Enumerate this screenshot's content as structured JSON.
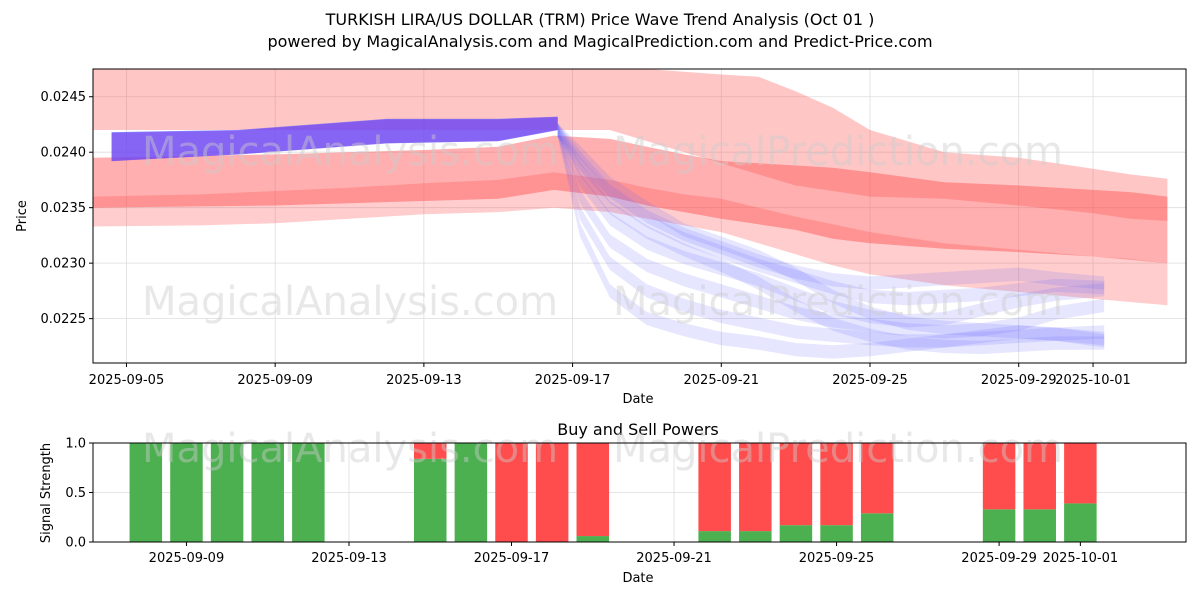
{
  "chart_data": [
    {
      "type": "area",
      "title": "TURKISH LIRA/US DOLLAR (TRM) Price Wave Trend Analysis (Oct 01 )",
      "subtitle": "powered by MagicalAnalysis.com and MagicalPrediction.com and Predict-Price.com",
      "xlabel": "Date",
      "ylabel": "Price",
      "x_range_days": [
        -0.9,
        28.5
      ],
      "ylim": [
        0.0221,
        0.02475
      ],
      "x_ticks": [
        {
          "day": 0,
          "label": "2025-09-05"
        },
        {
          "day": 4,
          "label": "2025-09-09"
        },
        {
          "day": 8,
          "label": "2025-09-13"
        },
        {
          "day": 12,
          "label": "2025-09-17"
        },
        {
          "day": 16,
          "label": "2025-09-21"
        },
        {
          "day": 20,
          "label": "2025-09-25"
        },
        {
          "day": 24,
          "label": "2025-09-29"
        },
        {
          "day": 26,
          "label": "2025-10-01"
        }
      ],
      "y_ticks": [
        {
          "value": 0.0225,
          "label": "0.0225"
        },
        {
          "value": 0.023,
          "label": "0.0230"
        },
        {
          "value": 0.0235,
          "label": "0.0235"
        },
        {
          "value": 0.024,
          "label": "0.0240"
        },
        {
          "value": 0.0245,
          "label": "0.0245"
        }
      ],
      "grid": true,
      "red_bands": [
        {
          "name": "red-band-wide-upper",
          "opacity": 0.32,
          "x": [
            -0.9,
            6,
            10,
            13,
            14,
            16,
            17,
            18,
            19,
            20,
            22,
            24,
            26,
            27,
            28
          ],
          "upper": [
            0.02475,
            0.02475,
            0.02475,
            0.02475,
            0.02475,
            0.0247,
            0.02468,
            0.02455,
            0.0244,
            0.0242,
            0.024,
            0.02395,
            0.02385,
            0.0238,
            0.02376
          ],
          "lower": [
            0.0242,
            0.0242,
            0.0242,
            0.0242,
            0.0241,
            0.0239,
            0.0238,
            0.0237,
            0.02365,
            0.0236,
            0.02358,
            0.02352,
            0.02345,
            0.0234,
            0.02338
          ]
        },
        {
          "name": "red-band-core",
          "opacity": 0.45,
          "x": [
            -0.9,
            4,
            8,
            10,
            11.5,
            13,
            14,
            15,
            16,
            17,
            18,
            19,
            20,
            22,
            24,
            26,
            27,
            28
          ],
          "upper": [
            0.02395,
            0.02398,
            0.02402,
            0.02405,
            0.02415,
            0.02412,
            0.02405,
            0.02398,
            0.02392,
            0.0239,
            0.02388,
            0.02386,
            0.02382,
            0.02373,
            0.0237,
            0.02366,
            0.02364,
            0.0236
          ],
          "lower": [
            0.0235,
            0.02352,
            0.02356,
            0.02358,
            0.02366,
            0.0236,
            0.02352,
            0.02346,
            0.0234,
            0.02335,
            0.0233,
            0.02322,
            0.02318,
            0.02313,
            0.0231,
            0.02306,
            0.02303,
            0.023
          ]
        },
        {
          "name": "red-band-low",
          "opacity": 0.28,
          "x": [
            -0.9,
            2,
            4,
            6,
            8,
            10,
            11.5,
            13,
            14,
            15,
            16,
            17,
            18,
            19,
            20,
            22,
            24,
            26,
            27,
            28
          ],
          "upper": [
            0.0236,
            0.02362,
            0.02365,
            0.02368,
            0.02372,
            0.02375,
            0.02382,
            0.02375,
            0.02368,
            0.02362,
            0.02358,
            0.0235,
            0.02342,
            0.02335,
            0.02328,
            0.02318,
            0.02312,
            0.02306,
            0.02304,
            0.023
          ],
          "lower": [
            0.02333,
            0.02334,
            0.02336,
            0.0234,
            0.02344,
            0.02346,
            0.0235,
            0.02346,
            0.0234,
            0.02334,
            0.02328,
            0.02318,
            0.02308,
            0.02298,
            0.0229,
            0.0228,
            0.02274,
            0.02268,
            0.02265,
            0.02262
          ]
        }
      ],
      "blue_band_history": {
        "x": [
          -0.4,
          3,
          7,
          10,
          11.6
        ],
        "upper": [
          0.02418,
          0.0242,
          0.0243,
          0.0243,
          0.02432
        ],
        "lower": [
          0.02392,
          0.02398,
          0.02408,
          0.0241,
          0.0242
        ]
      },
      "blue_projections": [
        {
          "x": [
            11.6,
            12.2,
            13,
            14,
            15,
            16,
            17,
            18,
            19,
            20,
            21,
            22,
            23,
            24,
            25,
            26.3
          ],
          "y": [
            0.0242,
            0.0233,
            0.02275,
            0.0225,
            0.0224,
            0.02232,
            0.02228,
            0.02222,
            0.0222,
            0.02222,
            0.02226,
            0.0223,
            0.02234,
            0.02238,
            0.02236,
            0.0223
          ]
        },
        {
          "x": [
            11.6,
            12.2,
            13,
            14,
            15,
            16,
            17,
            18,
            19,
            20,
            21,
            22,
            23,
            24,
            25,
            26.3
          ],
          "y": [
            0.0242,
            0.02345,
            0.023,
            0.02275,
            0.02262,
            0.02252,
            0.02245,
            0.02238,
            0.02235,
            0.02232,
            0.0223,
            0.0223,
            0.02232,
            0.02234,
            0.02236,
            0.02238
          ]
        },
        {
          "x": [
            11.6,
            12.2,
            13,
            14,
            15,
            16,
            17,
            18,
            19,
            20,
            21,
            22,
            23,
            24,
            25,
            26.3
          ],
          "y": [
            0.0242,
            0.0236,
            0.0232,
            0.02298,
            0.02285,
            0.02275,
            0.02265,
            0.02255,
            0.02248,
            0.02244,
            0.0224,
            0.02238,
            0.0224,
            0.02245,
            0.02255,
            0.02262
          ]
        },
        {
          "x": [
            11.6,
            12.2,
            13,
            14,
            15,
            16,
            17,
            18,
            19,
            20,
            21,
            22,
            23,
            24,
            25,
            26.3
          ],
          "y": [
            0.0242,
            0.02375,
            0.0234,
            0.02318,
            0.02305,
            0.02295,
            0.02285,
            0.02272,
            0.0226,
            0.02252,
            0.02248,
            0.0225,
            0.02258,
            0.02266,
            0.02272,
            0.02276
          ]
        },
        {
          "x": [
            11.6,
            12.2,
            13,
            14,
            15,
            16,
            17,
            18,
            19,
            20,
            21,
            22,
            23,
            24,
            25,
            26.3
          ],
          "y": [
            0.0242,
            0.0239,
            0.0236,
            0.02338,
            0.02322,
            0.0231,
            0.02298,
            0.02288,
            0.02278,
            0.0227,
            0.02268,
            0.0227,
            0.02272,
            0.02276,
            0.0228,
            0.02278
          ]
        },
        {
          "x": [
            11.6,
            12.2,
            13,
            14,
            15,
            16,
            17,
            18,
            19,
            20,
            21,
            22,
            23,
            24,
            25,
            26.3
          ],
          "y": [
            0.0242,
            0.024,
            0.02372,
            0.0235,
            0.0233,
            0.02318,
            0.02306,
            0.0229,
            0.0227,
            0.02255,
            0.02246,
            0.02242,
            0.0224,
            0.02238,
            0.02236,
            0.02232
          ]
        },
        {
          "x": [
            11.6,
            12.2,
            13,
            14,
            15,
            16,
            17,
            18,
            19,
            20,
            21,
            22,
            23,
            24,
            25,
            26.3
          ],
          "y": [
            0.0242,
            0.02385,
            0.0235,
            0.02328,
            0.02312,
            0.02298,
            0.02282,
            0.02262,
            0.02245,
            0.02235,
            0.02228,
            0.02225,
            0.02224,
            0.02226,
            0.02228,
            0.02228
          ]
        },
        {
          "x": [
            11.6,
            12.2,
            13,
            14,
            15,
            16,
            17,
            18,
            19,
            20,
            21,
            22,
            23,
            24,
            25,
            26.3
          ],
          "y": [
            0.0242,
            0.02395,
            0.02365,
            0.02342,
            0.02326,
            0.02314,
            0.02302,
            0.02292,
            0.02285,
            0.02282,
            0.02284,
            0.02286,
            0.02288,
            0.0229,
            0.02286,
            0.02282
          ]
        }
      ],
      "watermarks": [
        "MagicalAnalysis.com",
        "MagicalPrediction.com",
        "MagicalAnalysis.com",
        "MagicalPrediction.com"
      ]
    },
    {
      "type": "bar",
      "title": "Buy and Sell Powers",
      "xlabel": "Date",
      "ylabel": "Signal Strength",
      "ylim": [
        0,
        1
      ],
      "y_ticks": [
        {
          "value": 0.0,
          "label": "0.0"
        },
        {
          "value": 0.5,
          "label": "0.5"
        },
        {
          "value": 1.0,
          "label": "1.0"
        }
      ],
      "x_range_days": [
        -0.3,
        26.6
      ],
      "x_ticks": [
        {
          "day": 2,
          "label": "2025-09-09"
        },
        {
          "day": 6,
          "label": "2025-09-13"
        },
        {
          "day": 10,
          "label": "2025-09-17"
        },
        {
          "day": 14,
          "label": "2025-09-21"
        },
        {
          "day": 18,
          "label": "2025-09-25"
        },
        {
          "day": 22,
          "label": "2025-09-29"
        },
        {
          "day": 24,
          "label": "2025-10-01"
        }
      ],
      "series": [
        {
          "name": "buy",
          "color": "#4caf50"
        },
        {
          "name": "sell",
          "color": "#ff4d4d"
        }
      ],
      "bars": [
        {
          "date": "2025-09-08",
          "day": 1,
          "buy": 1.0,
          "sell": 0.0
        },
        {
          "date": "2025-09-09",
          "day": 2,
          "buy": 1.0,
          "sell": 0.0
        },
        {
          "date": "2025-09-10",
          "day": 3,
          "buy": 1.0,
          "sell": 0.0
        },
        {
          "date": "2025-09-11",
          "day": 4,
          "buy": 1.0,
          "sell": 0.0
        },
        {
          "date": "2025-09-12",
          "day": 5,
          "buy": 1.0,
          "sell": 0.0
        },
        {
          "date": "2025-09-15",
          "day": 8,
          "buy": 0.84,
          "sell": 0.16
        },
        {
          "date": "2025-09-16",
          "day": 9,
          "buy": 1.0,
          "sell": 0.0
        },
        {
          "date": "2025-09-17",
          "day": 10,
          "buy": 0.0,
          "sell": 1.0
        },
        {
          "date": "2025-09-18",
          "day": 11,
          "buy": 0.0,
          "sell": 1.0
        },
        {
          "date": "2025-09-19",
          "day": 12,
          "buy": 0.06,
          "sell": 0.94
        },
        {
          "date": "2025-09-22",
          "day": 15,
          "buy": 0.11,
          "sell": 0.89
        },
        {
          "date": "2025-09-23",
          "day": 16,
          "buy": 0.11,
          "sell": 0.89
        },
        {
          "date": "2025-09-24",
          "day": 17,
          "buy": 0.17,
          "sell": 0.83
        },
        {
          "date": "2025-09-25",
          "day": 18,
          "buy": 0.17,
          "sell": 0.83
        },
        {
          "date": "2025-09-26",
          "day": 19,
          "buy": 0.29,
          "sell": 0.71
        },
        {
          "date": "2025-09-29",
          "day": 22,
          "buy": 0.33,
          "sell": 0.67
        },
        {
          "date": "2025-09-30",
          "day": 23,
          "buy": 0.33,
          "sell": 0.67
        },
        {
          "date": "2025-10-01",
          "day": 24,
          "buy": 0.39,
          "sell": 0.61
        }
      ],
      "watermarks": [
        "MagicalAnalysis.com",
        "MagicalPrediction.com"
      ]
    }
  ]
}
